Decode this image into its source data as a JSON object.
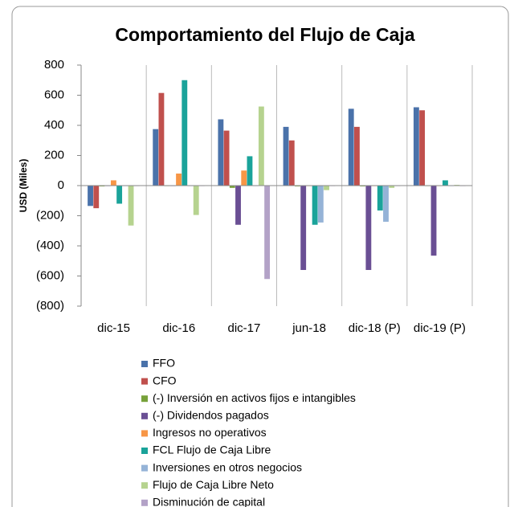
{
  "chart_data": {
    "type": "bar",
    "title": "Comportamiento del Flujo de Caja",
    "y_label": "USD (Miles)",
    "categories": [
      "dic-15",
      "dic-16",
      "dic-17",
      "jun-18",
      "dic-18 (P)",
      "dic-19 (P)"
    ],
    "series": [
      {
        "name": "FFO",
        "color": "#4a72aa",
        "values": [
          -135,
          375,
          440,
          390,
          510,
          520
        ]
      },
      {
        "name": "CFO",
        "color": "#c0504d",
        "values": [
          -150,
          615,
          365,
          300,
          390,
          500
        ]
      },
      {
        "name": "(-) Inversión en activos fijos e intangibles",
        "color": "#77a13a",
        "values": [
          -5,
          0,
          -15,
          -5,
          -5,
          0
        ]
      },
      {
        "name": "(-) Dividendos pagados",
        "color": "#6a4f94",
        "values": [
          0,
          0,
          -260,
          -560,
          -560,
          -465
        ]
      },
      {
        "name": "Ingresos no operativos",
        "color": "#f79646",
        "values": [
          35,
          80,
          100,
          0,
          0,
          0
        ]
      },
      {
        "name": "FCL Flujo de Caja Libre",
        "color": "#1aa39a",
        "values": [
          -120,
          700,
          195,
          -260,
          -165,
          35
        ]
      },
      {
        "name": "Inversiones en otros negocios",
        "color": "#95b3d7",
        "values": [
          0,
          0,
          0,
          -245,
          -240,
          0
        ]
      },
      {
        "name": "Flujo de Caja Libre Neto",
        "color": "#b6d38f",
        "values": [
          -265,
          -195,
          525,
          -30,
          -15,
          5
        ]
      },
      {
        "name": "Disminución de capital",
        "color": "#b3a2c7",
        "values": [
          0,
          0,
          -620,
          0,
          0,
          0
        ]
      }
    ],
    "ylim": [
      -800,
      800
    ],
    "yticks": [
      {
        "value": -800,
        "label": "(800)"
      },
      {
        "value": -600,
        "label": "(600)"
      },
      {
        "value": -400,
        "label": "(400)"
      },
      {
        "value": -200,
        "label": "(200)"
      },
      0,
      200,
      400,
      600,
      800
    ],
    "legend": "bottom"
  }
}
